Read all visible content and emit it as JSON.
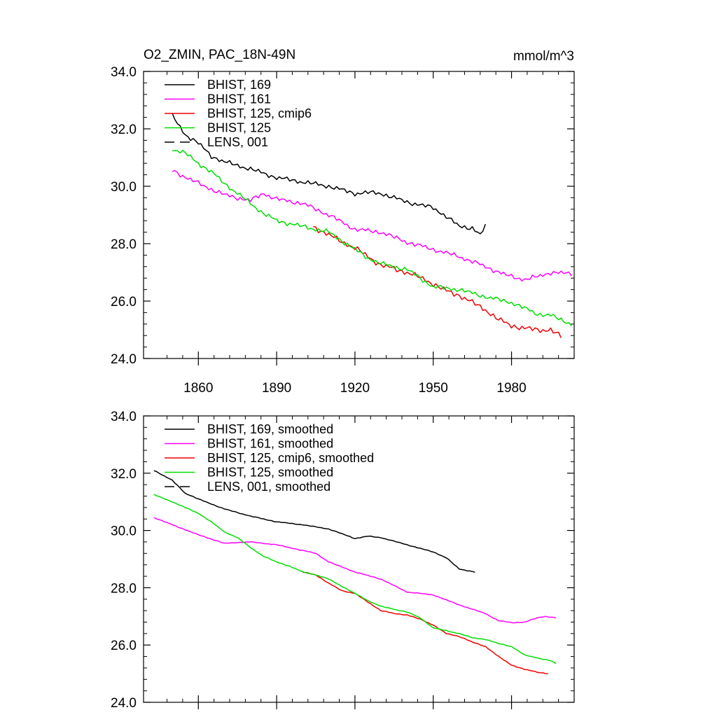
{
  "header": {
    "title_left": "O2_ZMIN, PAC_18N-49N",
    "units": "mmol/m^3"
  },
  "colors": {
    "black": "#000000",
    "magenta": "#ff00ff",
    "red": "#ee0000",
    "green": "#00dd00"
  },
  "chart_data": [
    {
      "type": "line",
      "xlim": [
        1839,
        2004
      ],
      "ylim": [
        24.0,
        34.0
      ],
      "x_ticks": [
        1860,
        1890,
        1920,
        1950,
        1980
      ],
      "x_tick_labels": [
        "1860",
        "1890",
        "1920",
        "1950",
        "1980"
      ],
      "y_ticks": [
        24.0,
        26.0,
        28.0,
        30.0,
        32.0,
        34.0
      ],
      "y_tick_labels": [
        "24.0",
        "26.0",
        "28.0",
        "30.0",
        "32.0",
        "34.0"
      ],
      "legend": [
        "BHIST, 169",
        "BHIST, 161",
        "BHIST, 125, cmip6",
        "BHIST, 125",
        "LENS, 001"
      ],
      "series": [
        {
          "name": "BHIST, 169",
          "color": "black",
          "style": "solid",
          "x_start": 1850,
          "x_end": 1970,
          "anchors": [
            [
              1850,
              32.45
            ],
            [
              1855,
              31.8
            ],
            [
              1860,
              31.5
            ],
            [
              1865,
              31.05
            ],
            [
              1870,
              30.85
            ],
            [
              1880,
              30.6
            ],
            [
              1890,
              30.3
            ],
            [
              1900,
              30.15
            ],
            [
              1910,
              30.0
            ],
            [
              1920,
              29.75
            ],
            [
              1925,
              29.78
            ],
            [
              1930,
              29.75
            ],
            [
              1940,
              29.45
            ],
            [
              1950,
              29.25
            ],
            [
              1955,
              28.95
            ],
            [
              1960,
              28.6
            ],
            [
              1965,
              28.55
            ],
            [
              1968,
              28.3
            ],
            [
              1970,
              28.6
            ]
          ],
          "noise": 0.1
        },
        {
          "name": "BHIST, 161",
          "color": "magenta",
          "style": "solid",
          "x_start": 1850,
          "x_end": 2003,
          "anchors": [
            [
              1850,
              30.55
            ],
            [
              1860,
              30.1
            ],
            [
              1870,
              29.7
            ],
            [
              1880,
              29.5
            ],
            [
              1885,
              29.75
            ],
            [
              1890,
              29.55
            ],
            [
              1900,
              29.4
            ],
            [
              1910,
              29.0
            ],
            [
              1920,
              28.5
            ],
            [
              1930,
              28.4
            ],
            [
              1940,
              28.05
            ],
            [
              1950,
              27.8
            ],
            [
              1960,
              27.55
            ],
            [
              1970,
              27.2
            ],
            [
              1978,
              26.9
            ],
            [
              1985,
              26.75
            ],
            [
              1990,
              26.85
            ],
            [
              1995,
              27.0
            ],
            [
              2003,
              26.95
            ]
          ],
          "noise": 0.1
        },
        {
          "name": "BHIST, 125, cmip6",
          "color": "red",
          "style": "solid",
          "x_start": 1904,
          "x_end": 1999,
          "anchors": [
            [
              1904,
              28.6
            ],
            [
              1910,
              28.3
            ],
            [
              1920,
              27.85
            ],
            [
              1930,
              27.25
            ],
            [
              1940,
              27.0
            ],
            [
              1948,
              26.7
            ],
            [
              1955,
              26.35
            ],
            [
              1960,
              26.2
            ],
            [
              1965,
              25.95
            ],
            [
              1970,
              25.7
            ],
            [
              1975,
              25.35
            ],
            [
              1980,
              25.15
            ],
            [
              1985,
              25.05
            ],
            [
              1990,
              25.0
            ],
            [
              1995,
              25.0
            ],
            [
              1999,
              24.75
            ]
          ],
          "noise": 0.12
        },
        {
          "name": "BHIST, 125",
          "color": "green",
          "style": "solid",
          "x_start": 1850,
          "x_end": 2003,
          "anchors": [
            [
              1850,
              31.3
            ],
            [
              1855,
              31.15
            ],
            [
              1860,
              30.8
            ],
            [
              1865,
              30.5
            ],
            [
              1870,
              30.1
            ],
            [
              1875,
              29.75
            ],
            [
              1880,
              29.4
            ],
            [
              1885,
              29.05
            ],
            [
              1890,
              28.8
            ],
            [
              1895,
              28.7
            ],
            [
              1900,
              28.6
            ],
            [
              1910,
              28.4
            ],
            [
              1920,
              27.8
            ],
            [
              1925,
              27.5
            ],
            [
              1930,
              27.3
            ],
            [
              1940,
              27.1
            ],
            [
              1950,
              26.5
            ],
            [
              1960,
              26.4
            ],
            [
              1970,
              26.15
            ],
            [
              1980,
              25.95
            ],
            [
              1990,
              25.55
            ],
            [
              1995,
              25.5
            ],
            [
              2003,
              25.2
            ]
          ],
          "noise": 0.1
        },
        {
          "name": "LENS, 001",
          "color": "black",
          "style": "dashed",
          "x_start": null,
          "x_end": null,
          "anchors": [],
          "noise": 0
        }
      ]
    },
    {
      "type": "line",
      "xlim": [
        1839,
        2004
      ],
      "ylim": [
        24.0,
        34.0
      ],
      "x_ticks": [
        1860,
        1890,
        1920,
        1950,
        1980
      ],
      "x_tick_labels": [],
      "y_ticks": [
        24.0,
        26.0,
        28.0,
        30.0,
        32.0,
        34.0
      ],
      "y_tick_labels": [
        "24.0",
        "26.0",
        "28.0",
        "30.0",
        "32.0",
        "34.0"
      ],
      "legend": [
        "BHIST, 169, smoothed",
        "BHIST, 161, smoothed",
        "BHIST, 125, cmip6, smoothed",
        "BHIST, 125, smoothed",
        "LENS, 001, smoothed"
      ],
      "series": [
        {
          "name": "BHIST, 169, smoothed",
          "color": "black",
          "style": "solid",
          "x_start": 1843,
          "x_end": 1966,
          "anchors": [
            [
              1843,
              32.1
            ],
            [
              1850,
              31.75
            ],
            [
              1855,
              31.3
            ],
            [
              1860,
              31.1
            ],
            [
              1870,
              30.75
            ],
            [
              1880,
              30.5
            ],
            [
              1890,
              30.3
            ],
            [
              1900,
              30.2
            ],
            [
              1910,
              30.05
            ],
            [
              1920,
              29.72
            ],
            [
              1925,
              29.8
            ],
            [
              1930,
              29.75
            ],
            [
              1940,
              29.5
            ],
            [
              1950,
              29.25
            ],
            [
              1955,
              29.05
            ],
            [
              1960,
              28.65
            ],
            [
              1966,
              28.55
            ]
          ],
          "noise": 0.015
        },
        {
          "name": "BHIST, 161, smoothed",
          "color": "magenta",
          "style": "solid",
          "x_start": 1843,
          "x_end": 1997,
          "anchors": [
            [
              1843,
              30.45
            ],
            [
              1850,
              30.2
            ],
            [
              1860,
              29.85
            ],
            [
              1870,
              29.55
            ],
            [
              1875,
              29.58
            ],
            [
              1880,
              29.6
            ],
            [
              1885,
              29.55
            ],
            [
              1890,
              29.5
            ],
            [
              1900,
              29.3
            ],
            [
              1905,
              29.2
            ],
            [
              1910,
              28.9
            ],
            [
              1920,
              28.55
            ],
            [
              1930,
              28.3
            ],
            [
              1940,
              27.85
            ],
            [
              1950,
              27.75
            ],
            [
              1960,
              27.4
            ],
            [
              1970,
              27.1
            ],
            [
              1975,
              26.85
            ],
            [
              1980,
              26.78
            ],
            [
              1985,
              26.8
            ],
            [
              1990,
              26.95
            ],
            [
              1993,
              27.0
            ],
            [
              1997,
              26.95
            ]
          ],
          "noise": 0.015
        },
        {
          "name": "BHIST, 125, cmip6, smoothed",
          "color": "red",
          "style": "solid",
          "x_start": 1900,
          "x_end": 1994,
          "anchors": [
            [
              1900,
              28.55
            ],
            [
              1905,
              28.45
            ],
            [
              1910,
              28.15
            ],
            [
              1915,
              27.9
            ],
            [
              1920,
              27.8
            ],
            [
              1925,
              27.5
            ],
            [
              1930,
              27.2
            ],
            [
              1935,
              27.1
            ],
            [
              1940,
              27.05
            ],
            [
              1945,
              26.9
            ],
            [
              1950,
              26.7
            ],
            [
              1955,
              26.4
            ],
            [
              1960,
              26.3
            ],
            [
              1965,
              26.1
            ],
            [
              1970,
              25.95
            ],
            [
              1975,
              25.6
            ],
            [
              1980,
              25.3
            ],
            [
              1985,
              25.15
            ],
            [
              1990,
              25.05
            ],
            [
              1994,
              25.0
            ]
          ],
          "noise": 0.015
        },
        {
          "name": "BHIST, 125, smoothed",
          "color": "green",
          "style": "solid",
          "x_start": 1843,
          "x_end": 1997,
          "anchors": [
            [
              1843,
              31.25
            ],
            [
              1850,
              31.0
            ],
            [
              1860,
              30.6
            ],
            [
              1865,
              30.3
            ],
            [
              1870,
              29.95
            ],
            [
              1875,
              29.75
            ],
            [
              1880,
              29.4
            ],
            [
              1885,
              29.1
            ],
            [
              1890,
              28.9
            ],
            [
              1895,
              28.75
            ],
            [
              1900,
              28.55
            ],
            [
              1905,
              28.45
            ],
            [
              1910,
              28.3
            ],
            [
              1915,
              28.05
            ],
            [
              1920,
              27.8
            ],
            [
              1925,
              27.55
            ],
            [
              1930,
              27.35
            ],
            [
              1940,
              27.15
            ],
            [
              1945,
              26.95
            ],
            [
              1950,
              26.6
            ],
            [
              1955,
              26.5
            ],
            [
              1960,
              26.4
            ],
            [
              1965,
              26.25
            ],
            [
              1970,
              26.2
            ],
            [
              1975,
              26.05
            ],
            [
              1980,
              25.95
            ],
            [
              1985,
              25.65
            ],
            [
              1990,
              25.55
            ],
            [
              1995,
              25.45
            ],
            [
              1997,
              25.35
            ]
          ],
          "noise": 0.015
        },
        {
          "name": "LENS, 001, smoothed",
          "color": "black",
          "style": "dashed",
          "x_start": null,
          "x_end": null,
          "anchors": [],
          "noise": 0
        }
      ]
    }
  ]
}
